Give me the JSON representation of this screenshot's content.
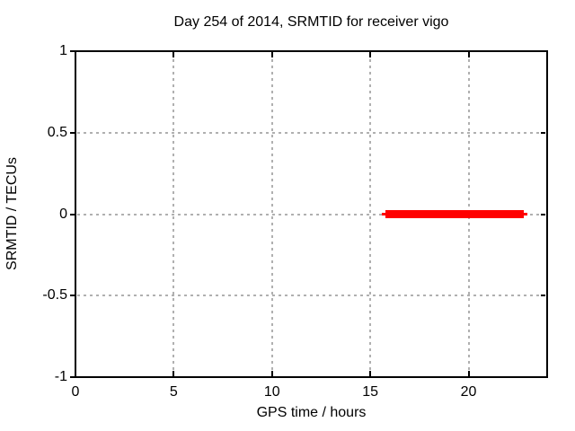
{
  "chart_data": {
    "type": "line",
    "title": "Day 254 of 2014, SRMTID for receiver vigo",
    "xlabel": "GPS time / hours",
    "ylabel": "SRMTID / TECUs",
    "xlim": [
      0,
      24
    ],
    "ylim": [
      -1,
      1
    ],
    "xticks": [
      {
        "value": 0,
        "label": "0"
      },
      {
        "value": 5,
        "label": "5"
      },
      {
        "value": 10,
        "label": "10"
      },
      {
        "value": 15,
        "label": "15"
      },
      {
        "value": 20,
        "label": "20"
      }
    ],
    "yticks": [
      {
        "value": 1,
        "label": "1"
      },
      {
        "value": 0.5,
        "label": "0.5"
      },
      {
        "value": 0,
        "label": "0"
      },
      {
        "value": -0.5,
        "label": "-0.5"
      },
      {
        "value": -1,
        "label": "-1"
      }
    ],
    "grid": {
      "enabled": true,
      "style": "dashed",
      "x_values": [
        5,
        10,
        15,
        20
      ],
      "y_values": [
        0.5,
        0,
        -0.5
      ]
    },
    "series": [
      {
        "name": "SRMTID",
        "shape": "horizontal-segment",
        "x_start": 15.7,
        "x_end": 22.9,
        "y": 0,
        "color": "#ff0000"
      }
    ],
    "colors": {
      "background": "#ffffff",
      "border": "#000000",
      "text": "#000000",
      "grid": "#b0b0b0",
      "series": "#ff0000"
    }
  }
}
